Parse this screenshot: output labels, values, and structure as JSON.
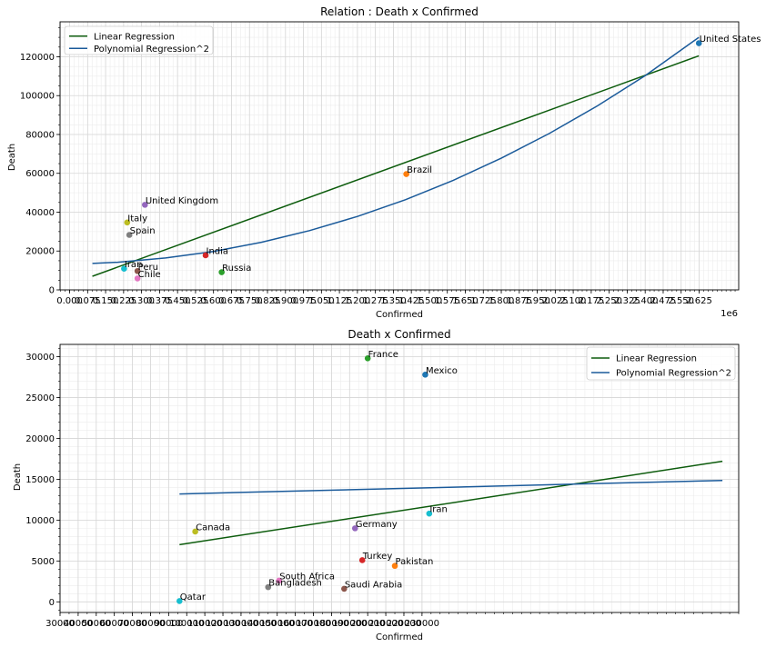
{
  "chart_data": [
    {
      "type": "scatter",
      "title": "Relation : Death x Confirmed",
      "xlabel": "Confirmed",
      "ylabel": "Death",
      "x_offset_label": "1e6",
      "xlim": [
        -0.04,
        2.79
      ],
      "ylim": [
        0,
        138000
      ],
      "grid": true,
      "legend_position": "top-left",
      "legend": [
        "Linear Regression",
        "Polynomial Regression^2"
      ],
      "x_ticks": [
        {
          "v": 0.0,
          "label": "0.000"
        },
        {
          "v": 0.075,
          "label": "0.075"
        },
        {
          "v": 0.15,
          "label": "0.150"
        },
        {
          "v": 0.225,
          "label": "0.225"
        },
        {
          "v": 0.3,
          "label": "0.300"
        },
        {
          "v": 0.375,
          "label": "0.375"
        },
        {
          "v": 0.45,
          "label": "0.450"
        },
        {
          "v": 0.525,
          "label": "0.525"
        },
        {
          "v": 0.6,
          "label": "0.600"
        },
        {
          "v": 0.675,
          "label": "0.675"
        },
        {
          "v": 0.75,
          "label": "0.750"
        },
        {
          "v": 0.825,
          "label": "0.825"
        },
        {
          "v": 0.9,
          "label": "0.900"
        },
        {
          "v": 0.975,
          "label": "0.975"
        },
        {
          "v": 1.05,
          "label": "1.050"
        },
        {
          "v": 1.125,
          "label": "1.125"
        },
        {
          "v": 1.2,
          "label": "1.200"
        },
        {
          "v": 1.275,
          "label": "1.275"
        },
        {
          "v": 1.35,
          "label": "1.350"
        },
        {
          "v": 1.425,
          "label": "1.425"
        },
        {
          "v": 1.5,
          "label": "1.500"
        },
        {
          "v": 1.575,
          "label": "1.575"
        },
        {
          "v": 1.65,
          "label": "1.650"
        },
        {
          "v": 1.725,
          "label": "1.725"
        },
        {
          "v": 1.8,
          "label": "1.800"
        },
        {
          "v": 1.875,
          "label": "1.875"
        },
        {
          "v": 1.95,
          "label": "1.950"
        },
        {
          "v": 2.025,
          "label": "2.025"
        },
        {
          "v": 2.1,
          "label": "2.100"
        },
        {
          "v": 2.175,
          "label": "2.175"
        },
        {
          "v": 2.25,
          "label": "2.250"
        },
        {
          "v": 2.325,
          "label": "2.325"
        },
        {
          "v": 2.4,
          "label": "2.400"
        },
        {
          "v": 2.475,
          "label": "2.475"
        },
        {
          "v": 2.55,
          "label": "2.550"
        },
        {
          "v": 2.625,
          "label": "2.625"
        }
      ],
      "y_ticks": [
        {
          "v": 0,
          "label": "0"
        },
        {
          "v": 20000,
          "label": "20000"
        },
        {
          "v": 40000,
          "label": "40000"
        },
        {
          "v": 60000,
          "label": "60000"
        },
        {
          "v": 80000,
          "label": "80000"
        },
        {
          "v": 100000,
          "label": "100000"
        },
        {
          "v": 120000,
          "label": "120000"
        }
      ],
      "points": [
        {
          "name": "United States",
          "x": 2.624,
          "y": 127000,
          "color": "#1f77b4"
        },
        {
          "name": "Brazil",
          "x": 1.404,
          "y": 59600,
          "color": "#ff7f0e"
        },
        {
          "name": "United Kingdom",
          "x": 0.314,
          "y": 43800,
          "color": "#9467bd"
        },
        {
          "name": "Italy",
          "x": 0.24,
          "y": 34700,
          "color": "#bcbd22"
        },
        {
          "name": "Spain",
          "x": 0.249,
          "y": 28300,
          "color": "#7f7f7f"
        },
        {
          "name": "India",
          "x": 0.567,
          "y": 17800,
          "color": "#d62728"
        },
        {
          "name": "Iran",
          "x": 0.227,
          "y": 10900,
          "color": "#17becf"
        },
        {
          "name": "Peru",
          "x": 0.283,
          "y": 9700,
          "color": "#8c564b"
        },
        {
          "name": "Russia",
          "x": 0.634,
          "y": 9100,
          "color": "#2ca02c"
        },
        {
          "name": "Chile",
          "x": 0.283,
          "y": 5900,
          "color": "#e377c2"
        }
      ],
      "series": [
        {
          "name": "Linear Regression",
          "color": "#0d5c0d",
          "x": [
            0.095,
            2.624
          ],
          "y": [
            7000,
            120500
          ]
        },
        {
          "name": "Polynomial Regression^2",
          "color": "#1a5a9a",
          "x": [
            0.095,
            0.2,
            0.4,
            0.6,
            0.8,
            1.0,
            1.2,
            1.4,
            1.6,
            1.8,
            2.0,
            2.2,
            2.4,
            2.624
          ],
          "y": [
            13600,
            14200,
            16400,
            19800,
            24500,
            30500,
            37800,
            46400,
            56400,
            67800,
            80500,
            94700,
            110300,
            130000
          ]
        }
      ]
    },
    {
      "type": "scatter",
      "title": "Death x Confirmed",
      "xlabel": "Confirmed",
      "ylabel": "Death",
      "xlim": [
        30000,
        405000
      ],
      "ylim": [
        -1300,
        31500
      ],
      "grid": true,
      "legend_position": "top-right",
      "legend": [
        "Linear Regression",
        "Polynomial Regression^2"
      ],
      "x_ticks": [
        {
          "v": 30000,
          "label": "30000"
        },
        {
          "v": 40000,
          "label": "40000"
        },
        {
          "v": 50000,
          "label": "50000"
        },
        {
          "v": 60000,
          "label": "60000"
        },
        {
          "v": 70000,
          "label": "70000"
        },
        {
          "v": 80000,
          "label": "80000"
        },
        {
          "v": 90000,
          "label": "90000"
        },
        {
          "v": 100000,
          "label": "100000"
        },
        {
          "v": 110000,
          "label": "110000"
        },
        {
          "v": 120000,
          "label": "120000"
        },
        {
          "v": 130000,
          "label": "130000"
        },
        {
          "v": 140000,
          "label": "140000"
        },
        {
          "v": 150000,
          "label": "150000"
        },
        {
          "v": 160000,
          "label": "160000"
        },
        {
          "v": 170000,
          "label": "170000"
        },
        {
          "v": 180000,
          "label": "180000"
        },
        {
          "v": 190000,
          "label": "190000"
        },
        {
          "v": 200000,
          "label": "200000"
        },
        {
          "v": 210000,
          "label": "210000"
        },
        {
          "v": 220000,
          "label": "220000"
        },
        {
          "v": 230000,
          "label": "230000"
        }
      ],
      "x_minor_step": 10000,
      "y_ticks": [
        {
          "v": 0,
          "label": "0"
        },
        {
          "v": 5000,
          "label": "5000"
        },
        {
          "v": 10000,
          "label": "10000"
        },
        {
          "v": 15000,
          "label": "15000"
        },
        {
          "v": 20000,
          "label": "20000"
        },
        {
          "v": 25000,
          "label": "25000"
        },
        {
          "v": 30000,
          "label": "30000"
        }
      ],
      "points": [
        {
          "name": "France",
          "x": 200000,
          "y": 29800,
          "color": "#2ca02c"
        },
        {
          "name": "Mexico",
          "x": 231800,
          "y": 27800,
          "color": "#1f77b4"
        },
        {
          "name": "Iran",
          "x": 234000,
          "y": 10800,
          "color": "#17becf"
        },
        {
          "name": "Germany",
          "x": 193000,
          "y": 9000,
          "color": "#9467bd"
        },
        {
          "name": "Canada",
          "x": 104700,
          "y": 8600,
          "color": "#bcbd22"
        },
        {
          "name": "Turkey",
          "x": 197000,
          "y": 5100,
          "color": "#d62728"
        },
        {
          "name": "Pakistan",
          "x": 215000,
          "y": 4400,
          "color": "#ff7f0e"
        },
        {
          "name": "South Africa",
          "x": 151000,
          "y": 2600,
          "color": "#e377c2"
        },
        {
          "name": "Bangladesh",
          "x": 145000,
          "y": 1800,
          "color": "#7f7f7f"
        },
        {
          "name": "Saudi Arabia",
          "x": 187000,
          "y": 1600,
          "color": "#8c564b"
        },
        {
          "name": "Qatar",
          "x": 96000,
          "y": 100,
          "color": "#17becf"
        }
      ],
      "series": [
        {
          "name": "Linear Regression",
          "color": "#0d5c0d",
          "x": [
            96000,
            396000
          ],
          "y": [
            7000,
            17200
          ]
        },
        {
          "name": "Polynomial Regression^2",
          "color": "#1a5a9a",
          "x": [
            96000,
            396000
          ],
          "y": [
            13200,
            14850
          ]
        }
      ]
    }
  ]
}
